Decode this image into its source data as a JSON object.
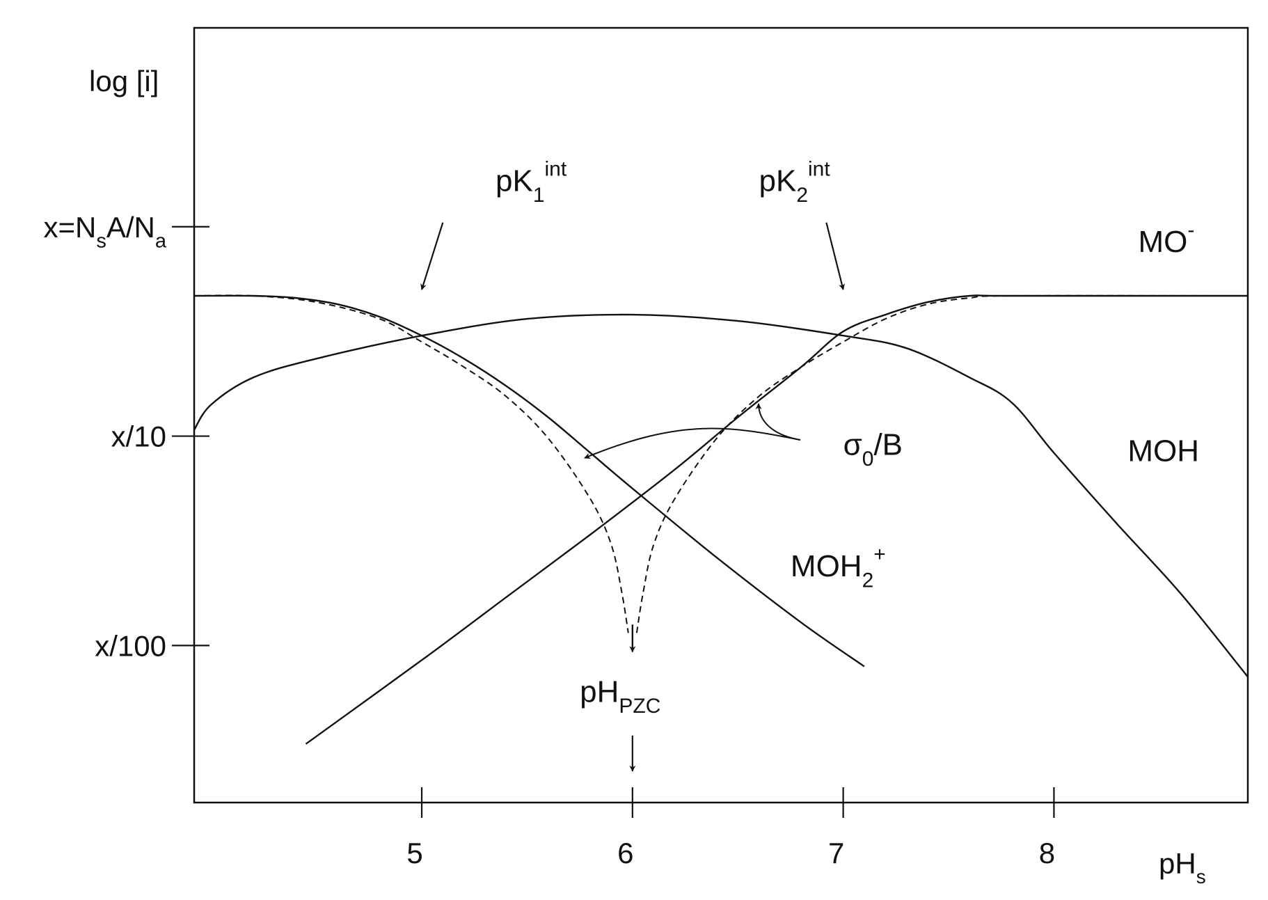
{
  "chart_data": {
    "type": "line",
    "ylabel": "log [i]",
    "xlabel": {
      "main": "pH",
      "sub": "s"
    },
    "xlim": [
      3.92,
      8.92
    ],
    "ylim": [
      -2.75,
      0.95
    ],
    "x_ticks": [
      {
        "value": 5,
        "label": "5"
      },
      {
        "value": 6,
        "label": "6"
      },
      {
        "value": 7,
        "label": "7"
      },
      {
        "value": 8,
        "label": "8"
      }
    ],
    "y_ticks": [
      {
        "value": 0,
        "parts": [
          {
            "t": "x=N"
          },
          {
            "t": "s",
            "sub": true
          },
          {
            "t": "A/N"
          },
          {
            "t": "a",
            "sub": true
          }
        ]
      },
      {
        "value": -1,
        "parts": [
          {
            "t": "x/10"
          }
        ]
      },
      {
        "value": -2,
        "parts": [
          {
            "t": "x/100"
          }
        ]
      }
    ],
    "series": [
      {
        "id": "MOH2+",
        "style": "solid",
        "points": [
          [
            3.92,
            -0.33
          ],
          [
            4.2,
            -0.33
          ],
          [
            4.4,
            -0.34
          ],
          [
            4.6,
            -0.37
          ],
          [
            4.8,
            -0.43
          ],
          [
            5.0,
            -0.52
          ],
          [
            5.2,
            -0.63
          ],
          [
            5.4,
            -0.76
          ],
          [
            5.6,
            -0.91
          ],
          [
            5.8,
            -1.08
          ],
          [
            6.0,
            -1.25
          ],
          [
            6.4,
            -1.58
          ],
          [
            6.8,
            -1.89
          ],
          [
            7.1,
            -2.1
          ]
        ]
      },
      {
        "id": "MO-",
        "style": "solid",
        "points": [
          [
            4.45,
            -2.47
          ],
          [
            5.0,
            -2.07
          ],
          [
            5.4,
            -1.77
          ],
          [
            5.8,
            -1.47
          ],
          [
            6.2,
            -1.16
          ],
          [
            6.5,
            -0.91
          ],
          [
            6.8,
            -0.67
          ],
          [
            7.0,
            -0.5
          ],
          [
            7.2,
            -0.42
          ],
          [
            7.4,
            -0.36
          ],
          [
            7.6,
            -0.33
          ],
          [
            7.8,
            -0.33
          ],
          [
            8.92,
            -0.33
          ]
        ]
      },
      {
        "id": "MOH",
        "style": "solid",
        "points": [
          [
            3.92,
            -0.97
          ],
          [
            4.0,
            -0.85
          ],
          [
            4.2,
            -0.72
          ],
          [
            4.5,
            -0.63
          ],
          [
            5.0,
            -0.52
          ],
          [
            5.5,
            -0.44
          ],
          [
            6.0,
            -0.42
          ],
          [
            6.5,
            -0.45
          ],
          [
            7.0,
            -0.52
          ],
          [
            7.3,
            -0.58
          ],
          [
            7.6,
            -0.72
          ],
          [
            7.8,
            -0.84
          ],
          [
            8.0,
            -1.08
          ],
          [
            8.3,
            -1.42
          ],
          [
            8.6,
            -1.75
          ],
          [
            8.92,
            -2.15
          ]
        ]
      },
      {
        "id": "sigma0-left",
        "style": "dashed",
        "points": [
          [
            3.92,
            -0.33
          ],
          [
            4.2,
            -0.33
          ],
          [
            4.5,
            -0.36
          ],
          [
            4.8,
            -0.44
          ],
          [
            5.0,
            -0.55
          ],
          [
            5.2,
            -0.67
          ],
          [
            5.4,
            -0.81
          ],
          [
            5.6,
            -1.01
          ],
          [
            5.8,
            -1.3
          ],
          [
            5.9,
            -1.52
          ],
          [
            5.95,
            -1.75
          ],
          [
            5.98,
            -1.94
          ]
        ]
      },
      {
        "id": "sigma0-right",
        "style": "dashed",
        "points": [
          [
            6.02,
            -1.94
          ],
          [
            6.05,
            -1.75
          ],
          [
            6.1,
            -1.52
          ],
          [
            6.2,
            -1.3
          ],
          [
            6.4,
            -1.01
          ],
          [
            6.6,
            -0.81
          ],
          [
            6.8,
            -0.67
          ],
          [
            7.0,
            -0.55
          ],
          [
            7.2,
            -0.44
          ],
          [
            7.4,
            -0.37
          ],
          [
            7.6,
            -0.34
          ],
          [
            7.8,
            -0.33
          ],
          [
            8.92,
            -0.33
          ]
        ]
      }
    ],
    "annotations": [
      {
        "id": "pk1",
        "parts": [
          {
            "t": "pK"
          },
          {
            "t": "1",
            "sub": true
          },
          {
            "t": "int",
            "sup": true
          }
        ],
        "x": 5.35,
        "y": 0.17,
        "arrow": {
          "from": [
            5.1,
            0.02
          ],
          "to": [
            5.0,
            -0.3
          ]
        }
      },
      {
        "id": "pk2",
        "parts": [
          {
            "t": "pK"
          },
          {
            "t": "2",
            "sub": true
          },
          {
            "t": "int",
            "sup": true
          }
        ],
        "x": 6.6,
        "y": 0.17,
        "arrow": {
          "from": [
            6.92,
            0.02
          ],
          "to": [
            7.0,
            -0.3
          ]
        }
      },
      {
        "id": "mo-minus",
        "parts": [
          {
            "t": "MO"
          },
          {
            "t": "-",
            "sup": true
          }
        ],
        "x": 8.4,
        "y": -0.12
      },
      {
        "id": "moh",
        "parts": [
          {
            "t": "MOH"
          }
        ],
        "x": 8.35,
        "y": -1.12
      },
      {
        "id": "moh2-plus",
        "parts": [
          {
            "t": "MOH"
          },
          {
            "t": "2",
            "sub": true
          },
          {
            "t": "+",
            "sup": true
          }
        ],
        "x": 6.75,
        "y": -1.67
      },
      {
        "id": "sigma0-b",
        "parts": [
          {
            "t": "σ"
          },
          {
            "t": "0",
            "sub": true
          },
          {
            "t": "/B"
          }
        ],
        "x": 7.0,
        "y": -1.09
      },
      {
        "id": "ph-pzc",
        "parts": [
          {
            "t": "pH"
          },
          {
            "t": "PZC",
            "sub": true
          }
        ],
        "x": 5.75,
        "y": -2.27,
        "arrow": {
          "from": [
            6.0,
            -2.43
          ],
          "to": [
            6.0,
            -2.6
          ]
        }
      }
    ]
  }
}
